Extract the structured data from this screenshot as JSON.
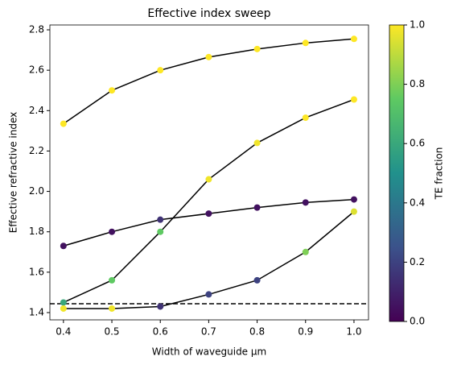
{
  "chart_data": {
    "type": "scatter",
    "title": "Effective index sweep",
    "x_label": "Width of waveguide µm",
    "y_label": "Effective refractive index",
    "colorbar_label": "TE fraction",
    "colormap": "viridis",
    "line_color": "#000000",
    "x": [
      0.4,
      0.5,
      0.6,
      0.7,
      0.8,
      0.9,
      1.0
    ],
    "series": [
      {
        "values": [
          2.335,
          2.5,
          2.6,
          2.665,
          2.705,
          2.735,
          2.755
        ],
        "te": [
          1.0,
          1.0,
          1.0,
          1.0,
          1.0,
          1.0,
          1.0
        ]
      },
      {
        "values": [
          1.45,
          1.56,
          1.8,
          2.06,
          2.24,
          2.365,
          2.455
        ],
        "te": [
          0.6,
          0.75,
          0.75,
          0.98,
          0.98,
          1.0,
          1.0
        ]
      },
      {
        "values": [
          1.73,
          1.8,
          1.86,
          1.89,
          1.92,
          1.945,
          1.96
        ],
        "te": [
          0.05,
          0.05,
          0.15,
          0.05,
          0.05,
          0.05,
          0.05
        ]
      },
      {
        "values": [
          1.42,
          1.42,
          1.43,
          1.49,
          1.56,
          1.7,
          1.9
        ],
        "te": [
          0.98,
          0.98,
          0.15,
          0.2,
          0.2,
          0.8,
          0.95
        ]
      }
    ],
    "hline": 1.444,
    "xlim": [
      0.372,
      1.03
    ],
    "xticks": [
      {
        "value": 0.4,
        "label": "0.4"
      },
      {
        "value": 0.5,
        "label": "0.5"
      },
      {
        "value": 0.6,
        "label": "0.6"
      },
      {
        "value": 0.7,
        "label": "0.7"
      },
      {
        "value": 0.8,
        "label": "0.8"
      },
      {
        "value": 0.9,
        "label": "0.9"
      },
      {
        "value": 1.0,
        "label": "1.0"
      }
    ],
    "ylim": [
      1.364,
      2.824
    ],
    "yticks": [
      1.4,
      1.6,
      1.8,
      {
        "value": 2.0,
        "label": "2.0"
      },
      2.2,
      2.4,
      2.6,
      2.8
    ],
    "clim": [
      0,
      1
    ],
    "cticks": [
      {
        "value": 0,
        "label": "0.0"
      },
      {
        "value": 0.2,
        "label": "0.2"
      },
      {
        "value": 0.4,
        "label": "0.4"
      },
      {
        "value": 0.6,
        "label": "0.6"
      },
      {
        "value": 0.8,
        "label": "0.8"
      },
      {
        "value": 1.0,
        "label": "1.0"
      }
    ]
  }
}
